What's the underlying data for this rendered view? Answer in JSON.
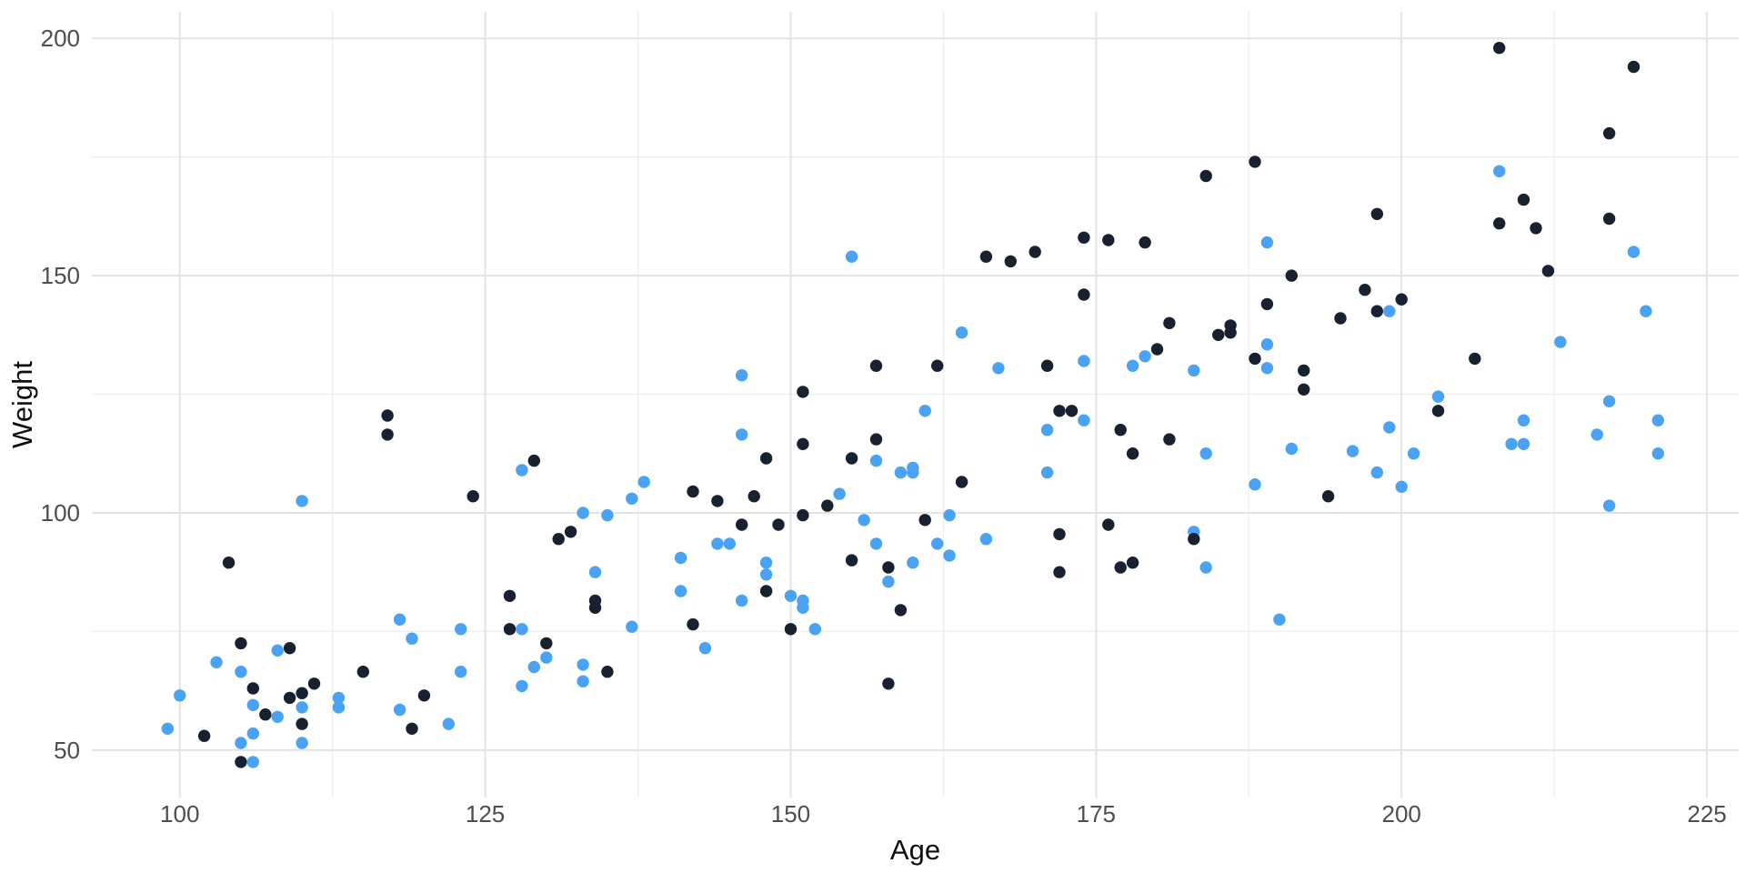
{
  "chart_data": {
    "type": "scatter",
    "title": "",
    "xlabel": "Age",
    "ylabel": "Weight",
    "xlim": [
      92.8,
      227.6
    ],
    "ylim": [
      40.0,
      205.6
    ],
    "x_ticks": [
      100,
      125,
      150,
      175,
      200,
      225
    ],
    "y_ticks": [
      50,
      100,
      150,
      200
    ],
    "x_minor_ticks": [
      112.5,
      137.5,
      162.5,
      187.5,
      212.5
    ],
    "y_minor_ticks": [
      75,
      125,
      175
    ],
    "grid": true,
    "legend_position": "none",
    "series": [
      {
        "name": "blue-group",
        "color": "#4aa2f5",
        "points": [
          [
            110,
            102.5
          ],
          [
            118,
            77.5
          ],
          [
            123,
            75.5
          ],
          [
            119,
            73.5
          ],
          [
            108,
            71
          ],
          [
            103,
            68.5
          ],
          [
            105,
            66.5
          ],
          [
            123,
            66.5
          ],
          [
            100,
            61.5
          ],
          [
            113,
            61
          ],
          [
            113,
            59
          ],
          [
            106,
            59.5
          ],
          [
            110,
            59
          ],
          [
            108,
            57
          ],
          [
            99,
            54.5
          ],
          [
            118,
            58.5
          ],
          [
            122,
            55.5
          ],
          [
            106,
            53.5
          ],
          [
            105,
            51.5
          ],
          [
            110,
            51.5
          ],
          [
            106,
            47.5
          ],
          [
            161,
            121.5
          ],
          [
            146,
            116.5
          ],
          [
            128,
            109
          ],
          [
            157,
            111
          ],
          [
            159,
            108.5
          ],
          [
            160,
            109.5
          ],
          [
            160,
            108.5
          ],
          [
            138,
            106.5
          ],
          [
            137,
            103
          ],
          [
            154,
            104
          ],
          [
            133,
            100
          ],
          [
            135,
            99.5
          ],
          [
            144,
            93.5
          ],
          [
            145,
            93.5
          ],
          [
            141,
            90.5
          ],
          [
            134,
            87.5
          ],
          [
            148,
            89.5
          ],
          [
            148,
            87
          ],
          [
            141,
            83.5
          ],
          [
            146,
            81.5
          ],
          [
            150,
            82.5
          ],
          [
            151,
            81.5
          ],
          [
            151,
            80
          ],
          [
            128,
            75.5
          ],
          [
            137,
            76
          ],
          [
            152,
            75.5
          ],
          [
            143,
            71.5
          ],
          [
            130,
            69.5
          ],
          [
            129,
            67.5
          ],
          [
            133,
            68
          ],
          [
            133,
            64.5
          ],
          [
            128,
            63.5
          ],
          [
            156,
            98.5
          ],
          [
            157,
            93.5
          ],
          [
            158,
            85.5
          ],
          [
            160,
            89.5
          ],
          [
            174,
            119.5
          ],
          [
            171,
            117.5
          ],
          [
            184,
            112.5
          ],
          [
            191,
            113.5
          ],
          [
            171,
            108.5
          ],
          [
            188,
            106
          ],
          [
            163,
            99.5
          ],
          [
            162,
            93.5
          ],
          [
            163,
            91
          ],
          [
            166,
            94.5
          ],
          [
            183,
            96
          ],
          [
            184,
            88.5
          ],
          [
            190,
            77.5
          ],
          [
            203,
            124.5
          ],
          [
            199,
            118
          ],
          [
            196,
            113
          ],
          [
            198,
            108.5
          ],
          [
            200,
            105.5
          ],
          [
            201,
            112.5
          ],
          [
            210,
            119.5
          ],
          [
            209,
            114.5
          ],
          [
            210,
            114.5
          ],
          [
            217,
            123.5
          ],
          [
            216,
            116.5
          ],
          [
            221,
            119.5
          ],
          [
            221,
            112.5
          ],
          [
            217,
            101.5
          ],
          [
            155,
            154
          ],
          [
            146,
            129
          ],
          [
            189,
            157
          ],
          [
            164,
            138
          ],
          [
            178,
            131
          ],
          [
            179,
            133
          ],
          [
            189,
            135.5
          ],
          [
            189,
            130.5
          ],
          [
            167,
            130.5
          ],
          [
            174,
            132
          ],
          [
            183,
            130
          ],
          [
            208,
            172
          ],
          [
            219,
            155
          ],
          [
            199,
            142.5
          ],
          [
            220,
            142.5
          ],
          [
            213,
            136
          ]
        ]
      },
      {
        "name": "navy-group",
        "color": "#182130",
        "points": [
          [
            117,
            120.5
          ],
          [
            117,
            116.5
          ],
          [
            124,
            103.5
          ],
          [
            104,
            89.5
          ],
          [
            105,
            72.5
          ],
          [
            109,
            71.5
          ],
          [
            115,
            66.5
          ],
          [
            106,
            63
          ],
          [
            109,
            61
          ],
          [
            110,
            62
          ],
          [
            111,
            64
          ],
          [
            107,
            57.5
          ],
          [
            110,
            55.5
          ],
          [
            119,
            54.5
          ],
          [
            120,
            61.5
          ],
          [
            102,
            53
          ],
          [
            105,
            47.5
          ],
          [
            151,
            125.5
          ],
          [
            151,
            114.5
          ],
          [
            129,
            111
          ],
          [
            157,
            115.5
          ],
          [
            148,
            111.5
          ],
          [
            155,
            111.5
          ],
          [
            142,
            104.5
          ],
          [
            144,
            102.5
          ],
          [
            147,
            103.5
          ],
          [
            131,
            94.5
          ],
          [
            132,
            96
          ],
          [
            146,
            97.5
          ],
          [
            149,
            97.5
          ],
          [
            148,
            83.5
          ],
          [
            127,
            82.5
          ],
          [
            134,
            81.5
          ],
          [
            134,
            80
          ],
          [
            127,
            75.5
          ],
          [
            142,
            76.5
          ],
          [
            150,
            75.5
          ],
          [
            130,
            72.5
          ],
          [
            135,
            66.5
          ],
          [
            158,
            64
          ],
          [
            153,
            101.5
          ],
          [
            151,
            99.5
          ],
          [
            155,
            90
          ],
          [
            158,
            88.5
          ],
          [
            159,
            79.5
          ],
          [
            172,
            121.5
          ],
          [
            173,
            121.5
          ],
          [
            177,
            117.5
          ],
          [
            181,
            115.5
          ],
          [
            178,
            112.5
          ],
          [
            164,
            106.5
          ],
          [
            194,
            103.5
          ],
          [
            161,
            98.5
          ],
          [
            172,
            95.5
          ],
          [
            176,
            97.5
          ],
          [
            172,
            87.5
          ],
          [
            177,
            88.5
          ],
          [
            178,
            89.5
          ],
          [
            183,
            94.5
          ],
          [
            203,
            121.5
          ],
          [
            157,
            131
          ],
          [
            184,
            171
          ],
          [
            188,
            174
          ],
          [
            174,
            158
          ],
          [
            176,
            157.5
          ],
          [
            179,
            157
          ],
          [
            166,
            154
          ],
          [
            168,
            153
          ],
          [
            170,
            155
          ],
          [
            191,
            150
          ],
          [
            174,
            146
          ],
          [
            181,
            140
          ],
          [
            186,
            139.5
          ],
          [
            186,
            138
          ],
          [
            185,
            137.5
          ],
          [
            180,
            134.5
          ],
          [
            189,
            144
          ],
          [
            188,
            132.5
          ],
          [
            192,
            130
          ],
          [
            192,
            126
          ],
          [
            195,
            141
          ],
          [
            162,
            131
          ],
          [
            171,
            131
          ],
          [
            208,
            198
          ],
          [
            219,
            194
          ],
          [
            217,
            180
          ],
          [
            210,
            166
          ],
          [
            198,
            163
          ],
          [
            208,
            161
          ],
          [
            211,
            160
          ],
          [
            217,
            162
          ],
          [
            212,
            151
          ],
          [
            197,
            147
          ],
          [
            200,
            145
          ],
          [
            198,
            142.5
          ],
          [
            206,
            132.5
          ]
        ]
      }
    ]
  },
  "style": {
    "background": "#ffffff",
    "grid_major_color": "#e3e3e3",
    "grid_minor_color": "#ededed",
    "tick_label_color": "#4d4d4d",
    "axis_title_color": "#0f0f0f",
    "point_radius": 6.7
  }
}
